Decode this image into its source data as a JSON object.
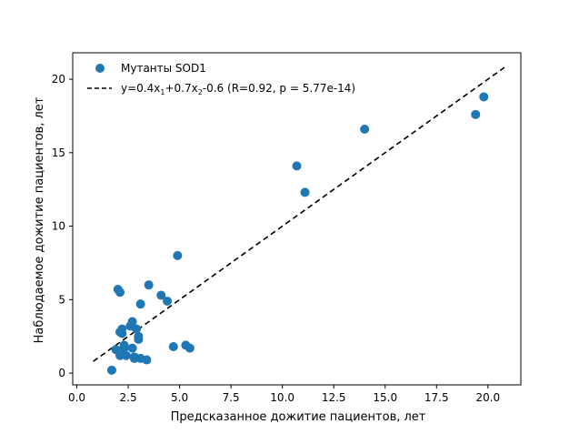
{
  "chart_data": {
    "type": "scatter",
    "title": "",
    "xlabel": "Предсказанное дожитие пациентов, лет",
    "ylabel": "Наблюдаемое дожитие пациентов, лет",
    "xlim": [
      -0.2,
      21.6
    ],
    "ylim": [
      -0.8,
      21.8
    ],
    "grid": false,
    "legend_position": "top-left",
    "x_ticks": [
      0.0,
      2.5,
      5.0,
      7.5,
      10.0,
      12.5,
      15.0,
      17.5,
      20.0
    ],
    "x_tick_labels": [
      "0.0",
      "2.5",
      "5.0",
      "7.5",
      "10.0",
      "12.5",
      "15.0",
      "17.5",
      "20.0"
    ],
    "y_ticks": [
      0,
      5,
      10,
      15,
      20
    ],
    "y_tick_labels": [
      "0",
      "5",
      "10",
      "15",
      "20"
    ],
    "series": [
      {
        "name": "Мутанты SOD1",
        "type": "scatter",
        "color": "#1f77b4",
        "x": [
          1.7,
          1.9,
          2.0,
          2.1,
          2.2,
          2.3,
          2.2,
          2.1,
          2.1,
          2.3,
          2.4,
          2.6,
          2.7,
          2.8,
          2.7,
          2.8,
          2.9,
          3.0,
          3.0,
          3.1,
          3.1,
          3.4,
          3.5,
          4.1,
          4.4,
          4.7,
          4.9,
          5.3,
          5.5,
          10.7,
          11.1,
          14.0,
          19.4,
          19.8
        ],
        "y": [
          0.2,
          1.6,
          5.7,
          5.5,
          2.7,
          1.9,
          3.0,
          2.8,
          1.2,
          1.7,
          1.2,
          3.2,
          3.5,
          1.1,
          1.7,
          1.0,
          3.0,
          2.5,
          2.3,
          4.7,
          1.0,
          0.9,
          6.0,
          5.3,
          4.9,
          1.8,
          8.0,
          1.9,
          1.7,
          14.1,
          12.3,
          16.6,
          17.6,
          18.8
        ]
      },
      {
        "name": "y=0.4x1+0.7x2-0.6 (R=0.92, p = 5.77e-14)",
        "type": "line",
        "style": "dashed",
        "color": "#000000",
        "x": [
          0.8,
          20.8
        ],
        "y": [
          0.8,
          20.8
        ]
      }
    ],
    "legend": {
      "scatter_label": "Мутанты SOD1",
      "line_label_parts": [
        "y=0.4x",
        "1",
        "+0.7x",
        "2",
        "-0.6 (R=0.92, p = 5.77e-14)"
      ]
    }
  }
}
